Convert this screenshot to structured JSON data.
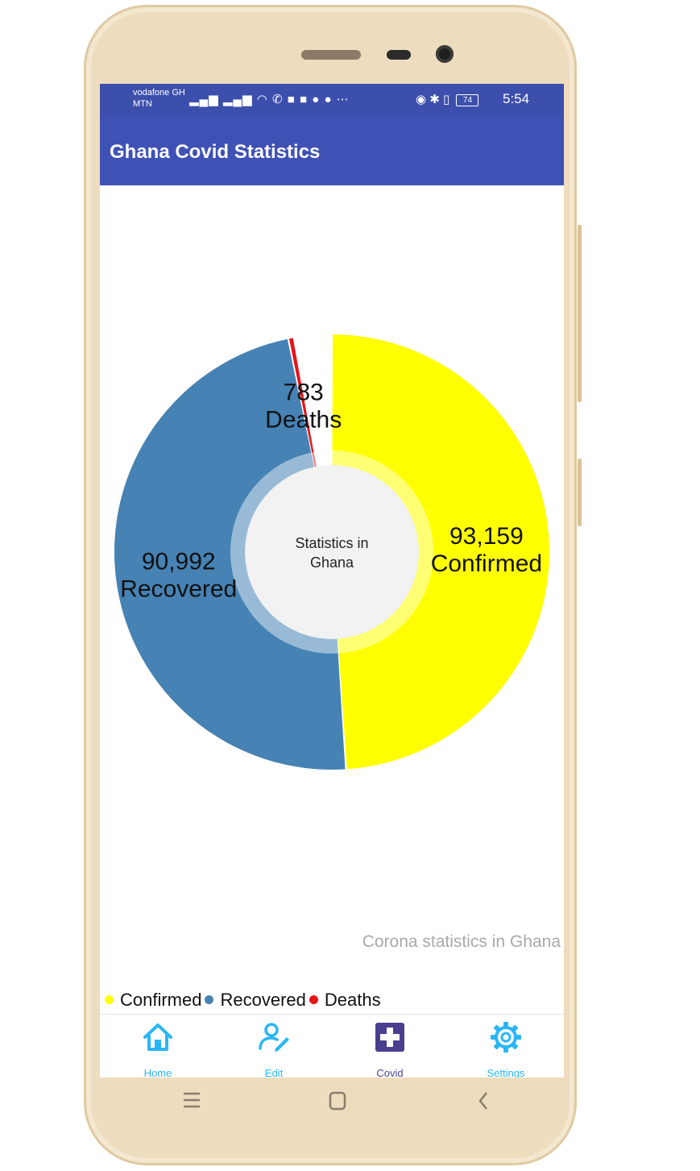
{
  "status_bar": {
    "carrier_1": "vodafone GH",
    "carrier_2": "MTN",
    "battery": "74",
    "time": "5:54"
  },
  "app_bar": {
    "title": "Ghana Covid Statistics"
  },
  "chart_data": {
    "type": "pie",
    "center_text_line1": "Statistics in",
    "center_text_line2": "Ghana",
    "description": "Corona statistics in Ghana",
    "legend_position": "bottom-left",
    "slices": [
      {
        "label": "Confirmed",
        "value": 93159,
        "value_label": "93,159",
        "color": "#ffff00"
      },
      {
        "label": "Recovered",
        "value": 90992,
        "value_label": "90,992",
        "color": "#4682b4"
      },
      {
        "label": "Deaths",
        "value": 783,
        "value_label": "783",
        "color": "#e8141b"
      }
    ]
  },
  "bottom_nav": {
    "items": [
      {
        "label": "Home",
        "icon": "home-icon",
        "color": "#29b6f6"
      },
      {
        "label": "Edit",
        "icon": "edit-user-icon",
        "color": "#29b6f6"
      },
      {
        "label": "Covid",
        "icon": "medical-cross-icon",
        "color": "#4a3f8f"
      },
      {
        "label": "Settings",
        "icon": "gear-icon",
        "color": "#29b6f6"
      }
    ]
  }
}
